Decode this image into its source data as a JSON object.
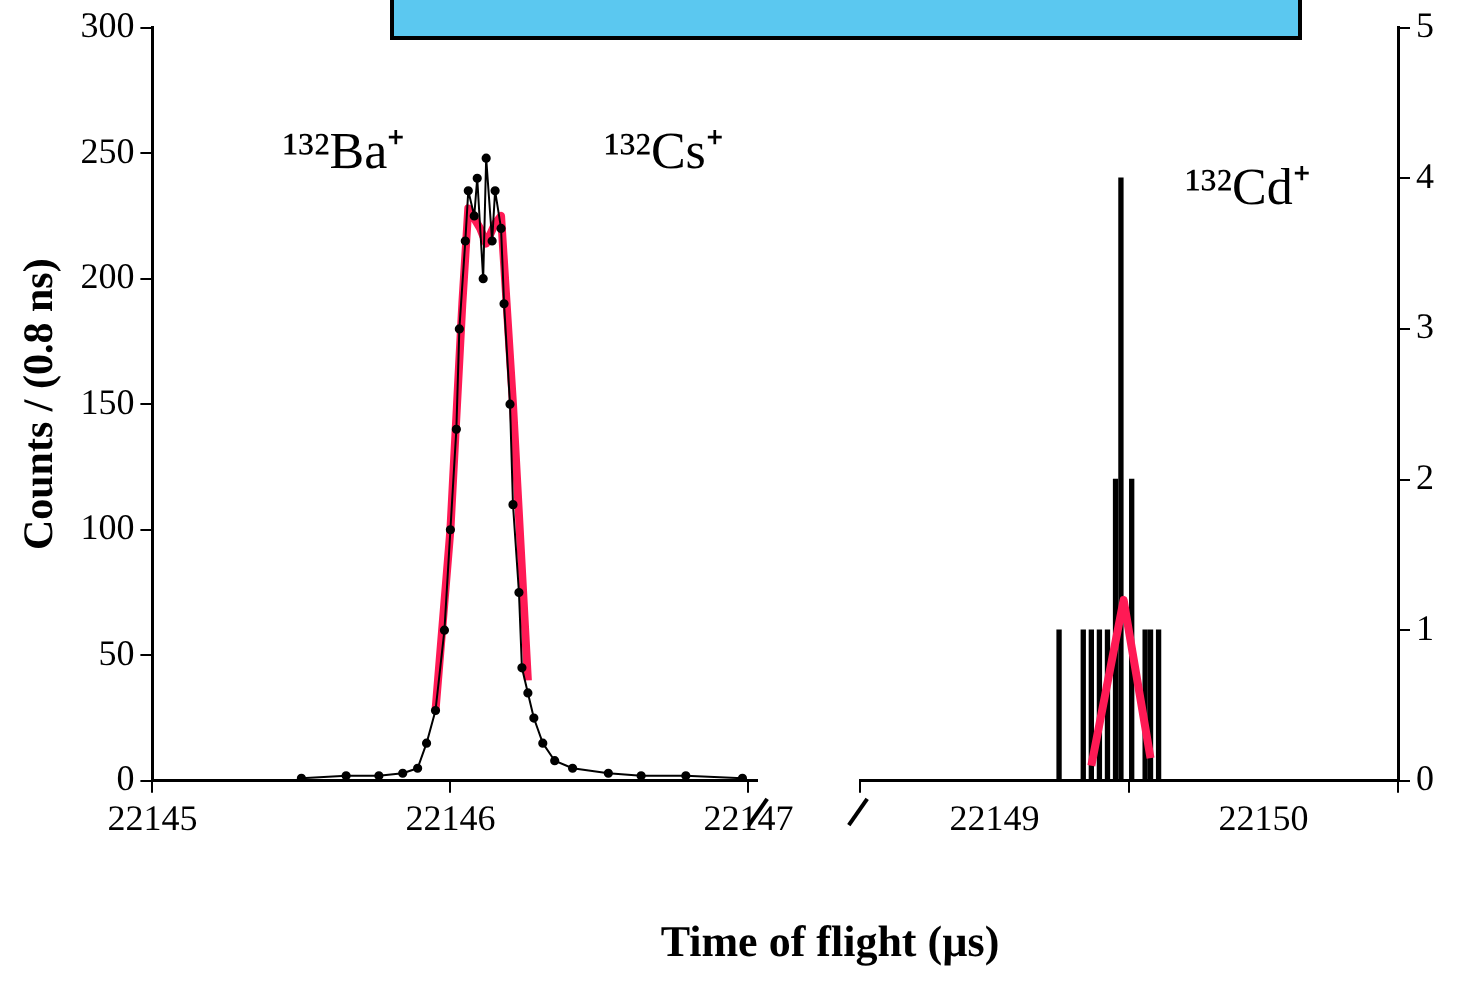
{
  "chart_data": [
    {
      "type": "line",
      "ylabel": "Counts / (0.8 ns)",
      "xlabel": "Time of flight (µs)",
      "xlim": [
        22145,
        22147.03
      ],
      "xticks": [
        22145,
        22146,
        22147
      ],
      "ylim": [
        0,
        300
      ],
      "yticks": [
        0,
        50,
        100,
        150,
        200,
        250,
        300
      ],
      "grid": false,
      "series": [
        {
          "color": "#000000",
          "marker": "circle",
          "x": [
            22145.5,
            22145.65,
            22145.76,
            22145.84,
            22145.89,
            22145.92,
            22145.95,
            22145.98,
            22146.0,
            22146.02,
            22146.03,
            22146.05,
            22146.06,
            22146.08,
            22146.09,
            22146.11,
            22146.12,
            22146.14,
            22146.15,
            22146.17,
            22146.18,
            22146.2,
            22146.21,
            22146.23,
            22146.24,
            22146.26,
            22146.28,
            22146.31,
            22146.35,
            22146.41,
            22146.53,
            22146.64,
            22146.79,
            22146.98
          ],
          "values": [
            1,
            2,
            2,
            3,
            5,
            15,
            28,
            60,
            100,
            140,
            180,
            215,
            235,
            225,
            240,
            200,
            248,
            215,
            235,
            220,
            190,
            150,
            110,
            75,
            45,
            35,
            25,
            15,
            8,
            5,
            3,
            2,
            2,
            1
          ]
        },
        {
          "color": "#ff1a55",
          "marker": "none",
          "x": [
            22145.95,
            22146.0,
            22146.04,
            22146.06,
            22146.1,
            22146.12,
            22146.15,
            22146.17,
            22146.21,
            22146.26
          ],
          "values": [
            28,
            100,
            190,
            228,
            220,
            214,
            222,
            225,
            150,
            40
          ]
        }
      ],
      "annotations": [
        "¹³²Ba⁺",
        "¹³²Cs⁺"
      ]
    },
    {
      "type": "line",
      "xlim": [
        22148.5,
        22150.5
      ],
      "xticks": [
        22149,
        22150
      ],
      "y2lim": [
        0,
        5
      ],
      "y2ticks": [
        0,
        1,
        2,
        3,
        4,
        5
      ],
      "grid": false,
      "series": [
        {
          "type": "bar",
          "axis": "y2",
          "color": "#000000",
          "x": [
            22149.24,
            22149.33,
            22149.36,
            22149.39,
            22149.42,
            22149.45,
            22149.47,
            22149.51,
            22149.56,
            22149.58,
            22149.61
          ],
          "values": [
            1,
            1,
            1,
            1,
            1,
            2,
            4,
            2,
            1,
            1,
            1
          ]
        },
        {
          "axis": "y2",
          "color": "#ff1a55",
          "marker": "none",
          "x": [
            22149.36,
            22149.48,
            22149.58
          ],
          "values": [
            0.1,
            1.2,
            0.15
          ]
        }
      ],
      "annotations": [
        "¹³²Cd⁺"
      ]
    }
  ]
}
